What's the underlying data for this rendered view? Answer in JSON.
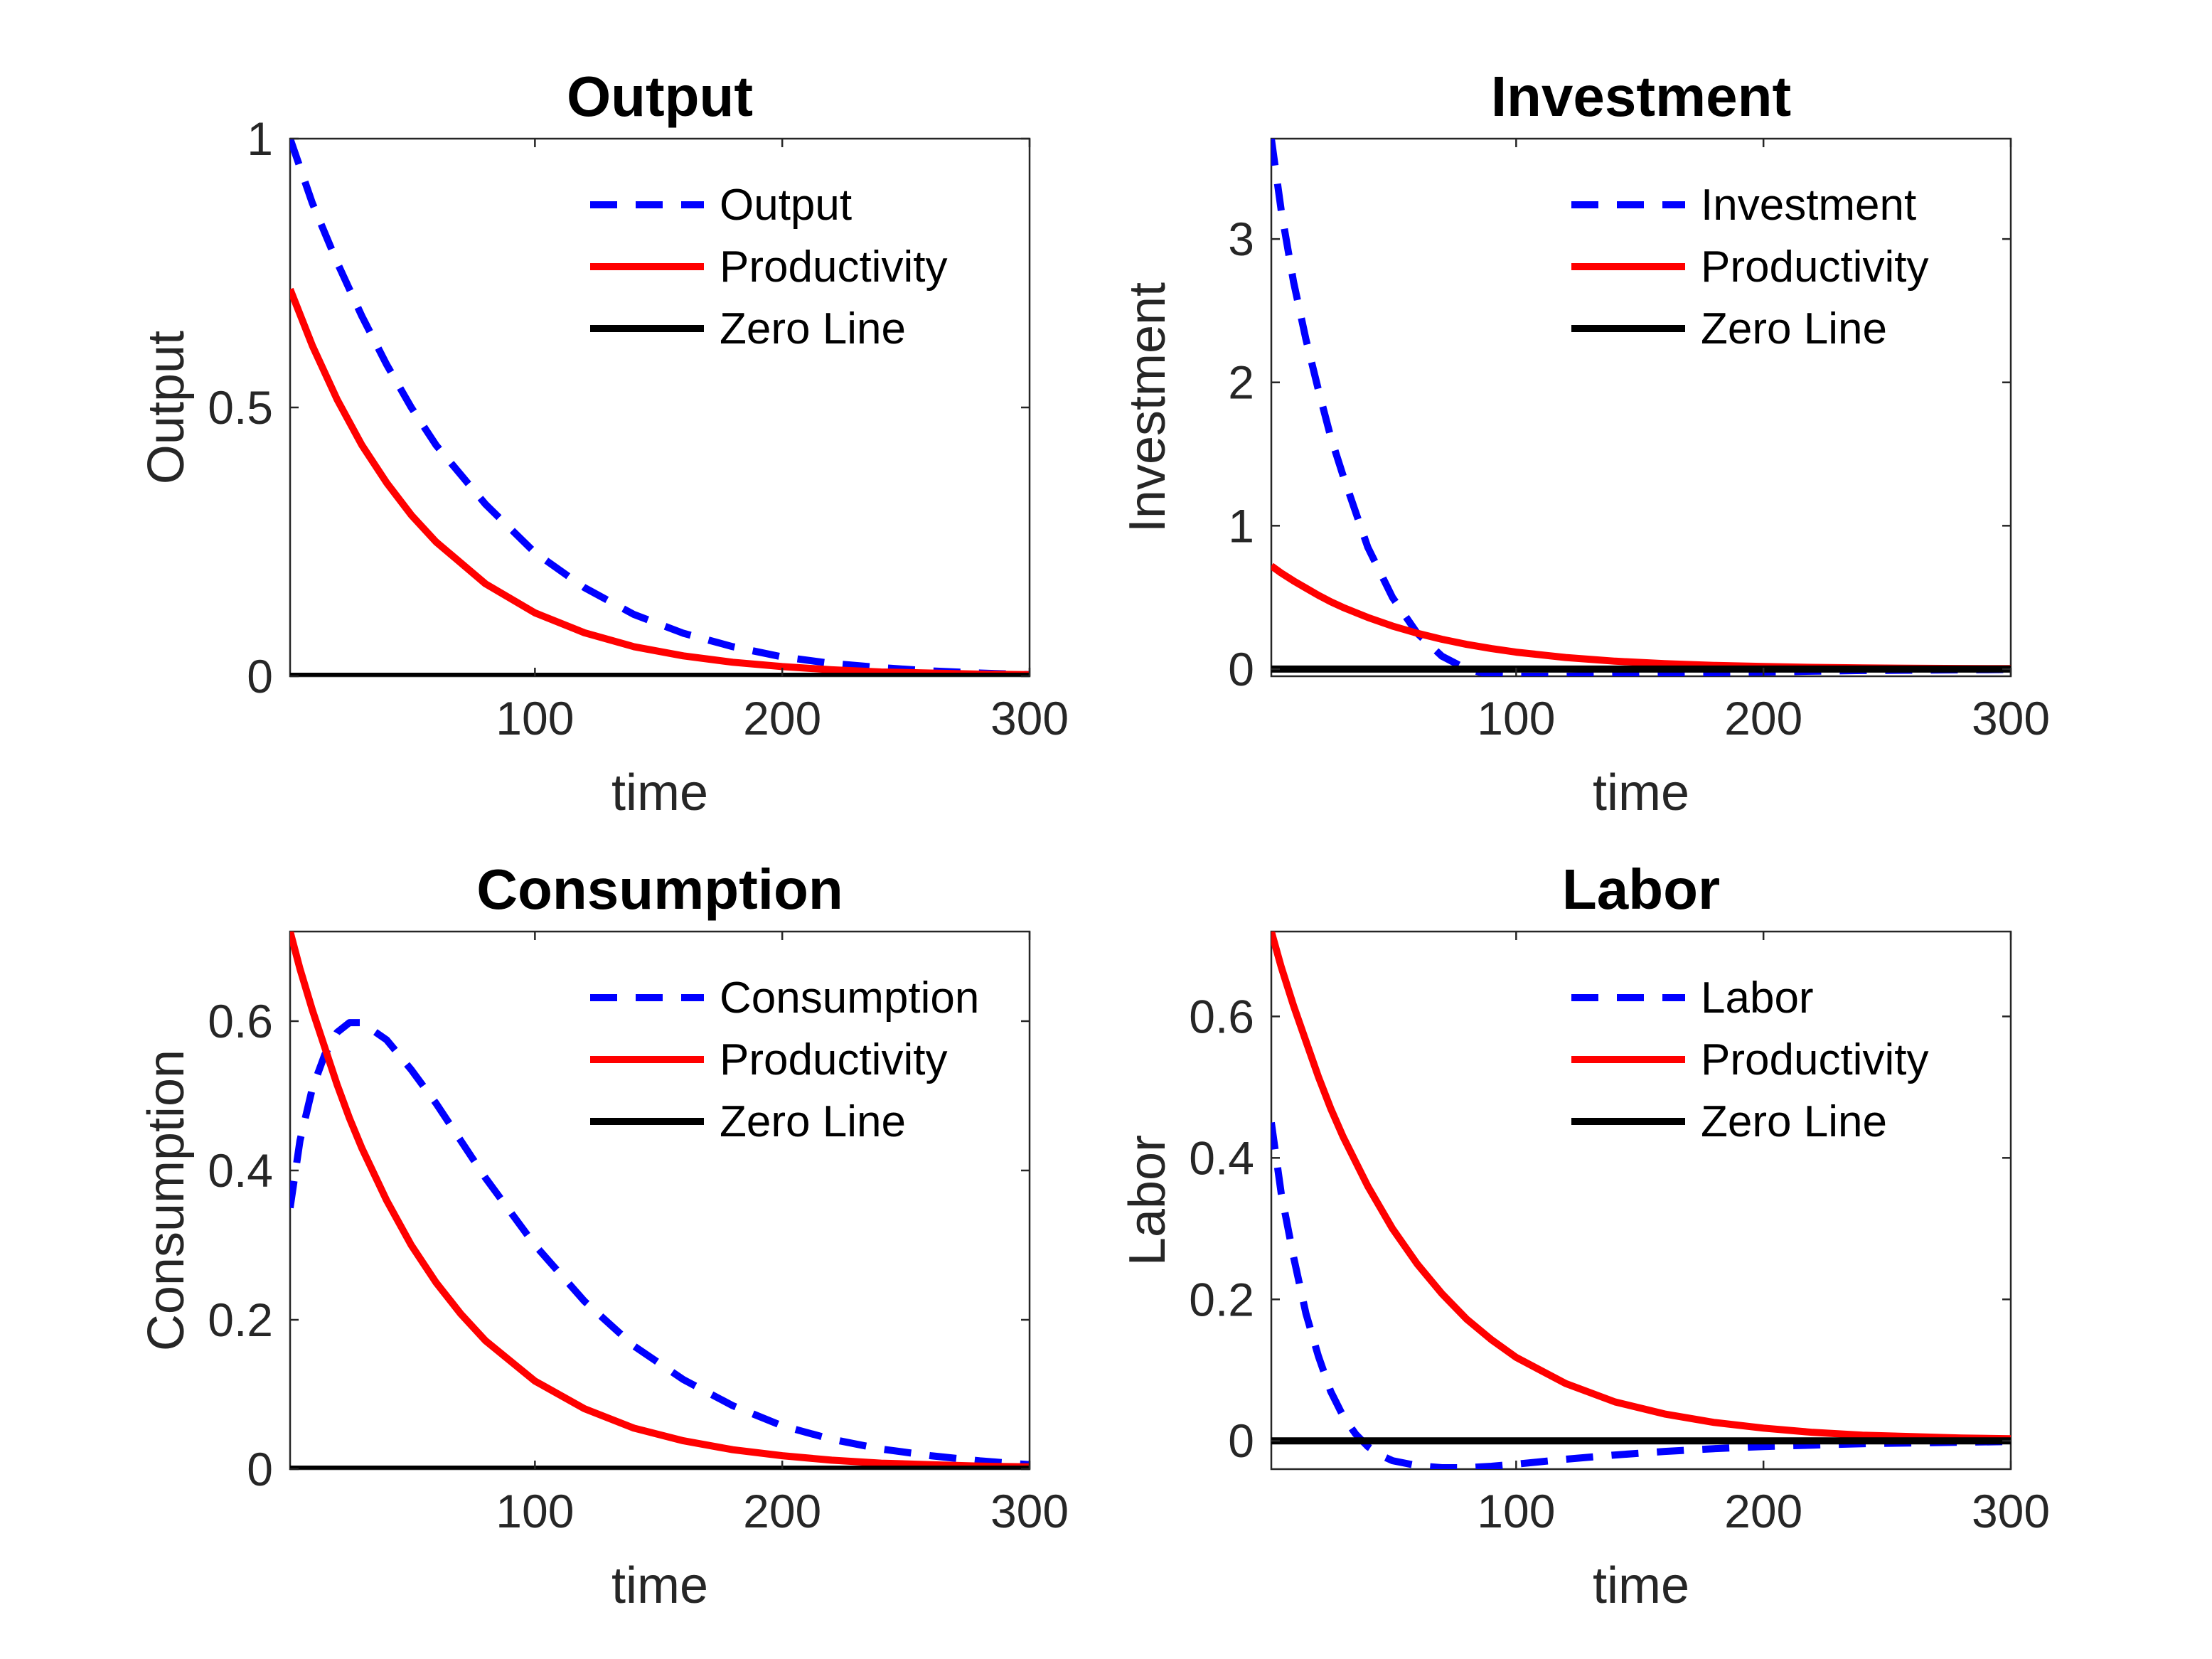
{
  "figure": {
    "background": "#ffffff"
  },
  "chart_data": [
    {
      "type": "line",
      "title": "Output",
      "xlabel": "time",
      "ylabel": "Output",
      "xlim": [
        1,
        300
      ],
      "ylim": [
        0,
        1
      ],
      "xticks": [
        100,
        200,
        300
      ],
      "yticks": [
        0,
        0.5,
        1
      ],
      "ytick_labels": [
        "0",
        "0.5",
        "1"
      ],
      "grid": false,
      "legend_position": "top-right",
      "x": [
        1,
        10,
        20,
        30,
        40,
        50,
        60,
        80,
        100,
        120,
        140,
        160,
        180,
        200,
        220,
        240,
        260,
        280,
        300
      ],
      "series": [
        {
          "name": "Output",
          "color": "#0000ff",
          "style": "dashed",
          "values": [
            1.0,
            0.88,
            0.77,
            0.67,
            0.58,
            0.5,
            0.43,
            0.32,
            0.23,
            0.165,
            0.115,
            0.08,
            0.055,
            0.036,
            0.024,
            0.016,
            0.01,
            0.006,
            0.003
          ]
        },
        {
          "name": "Productivity",
          "color": "#ff0000",
          "style": "solid",
          "values": [
            0.72,
            0.615,
            0.515,
            0.43,
            0.36,
            0.3,
            0.25,
            0.172,
            0.118,
            0.081,
            0.055,
            0.038,
            0.026,
            0.018,
            0.012,
            0.008,
            0.006,
            0.004,
            0.003
          ]
        },
        {
          "name": "Zero Line",
          "color": "#000000",
          "style": "solid",
          "values": [
            0,
            0,
            0,
            0,
            0,
            0,
            0,
            0,
            0,
            0,
            0,
            0,
            0,
            0,
            0,
            0,
            0,
            0,
            0
          ]
        }
      ]
    },
    {
      "type": "line",
      "title": "Investment",
      "xlabel": "time",
      "ylabel": "Investment",
      "xlim": [
        1,
        300
      ],
      "ylim": [
        -0.05,
        3.7
      ],
      "xticks": [
        100,
        200,
        300
      ],
      "yticks": [
        0,
        1,
        2,
        3
      ],
      "ytick_labels": [
        "0",
        "1",
        "2",
        "3"
      ],
      "grid": false,
      "legend_position": "top-right",
      "x": [
        1,
        5,
        10,
        15,
        20,
        25,
        30,
        40,
        50,
        60,
        70,
        80,
        90,
        100,
        120,
        140,
        160,
        180,
        200,
        220,
        240,
        260,
        280,
        300
      ],
      "series": [
        {
          "name": "Investment",
          "color": "#0000ff",
          "style": "dashed",
          "values": [
            3.7,
            3.2,
            2.7,
            2.3,
            1.95,
            1.62,
            1.35,
            0.85,
            0.5,
            0.25,
            0.09,
            0.0,
            -0.04,
            -0.05,
            -0.05,
            -0.04,
            -0.03,
            -0.025,
            -0.02,
            -0.015,
            -0.01,
            -0.008,
            -0.005,
            -0.003
          ]
        },
        {
          "name": "Productivity",
          "color": "#ff0000",
          "style": "solid",
          "values": [
            0.72,
            0.67,
            0.615,
            0.565,
            0.515,
            0.47,
            0.43,
            0.36,
            0.3,
            0.25,
            0.208,
            0.172,
            0.143,
            0.118,
            0.081,
            0.055,
            0.038,
            0.026,
            0.018,
            0.012,
            0.008,
            0.006,
            0.004,
            0.003
          ]
        },
        {
          "name": "Zero Line",
          "color": "#000000",
          "style": "solid",
          "values": [
            0,
            0,
            0,
            0,
            0,
            0,
            0,
            0,
            0,
            0,
            0,
            0,
            0,
            0,
            0,
            0,
            0,
            0,
            0,
            0,
            0,
            0,
            0,
            0
          ]
        }
      ]
    },
    {
      "type": "line",
      "title": "Consumption",
      "xlabel": "time",
      "ylabel": "Consumption",
      "xlim": [
        1,
        300
      ],
      "ylim": [
        0,
        0.72
      ],
      "xticks": [
        100,
        200,
        300
      ],
      "yticks": [
        0,
        0.2,
        0.4,
        0.6
      ],
      "ytick_labels": [
        "0",
        "0.2",
        "0.4",
        "0.6"
      ],
      "grid": false,
      "legend_position": "top-right",
      "x": [
        1,
        5,
        10,
        15,
        20,
        25,
        30,
        40,
        50,
        60,
        70,
        80,
        100,
        120,
        140,
        160,
        180,
        200,
        220,
        240,
        260,
        280,
        300
      ],
      "series": [
        {
          "name": "Consumption",
          "color": "#0000ff",
          "style": "dashed",
          "values": [
            0.35,
            0.44,
            0.51,
            0.555,
            0.585,
            0.598,
            0.598,
            0.575,
            0.535,
            0.49,
            0.44,
            0.39,
            0.3,
            0.225,
            0.165,
            0.12,
            0.085,
            0.058,
            0.04,
            0.027,
            0.018,
            0.011,
            0.006
          ]
        },
        {
          "name": "Productivity",
          "color": "#ff0000",
          "style": "solid",
          "values": [
            0.72,
            0.67,
            0.615,
            0.565,
            0.515,
            0.47,
            0.43,
            0.36,
            0.3,
            0.25,
            0.208,
            0.172,
            0.118,
            0.081,
            0.055,
            0.038,
            0.026,
            0.018,
            0.012,
            0.008,
            0.006,
            0.004,
            0.003
          ]
        },
        {
          "name": "Zero Line",
          "color": "#000000",
          "style": "solid",
          "values": [
            0,
            0,
            0,
            0,
            0,
            0,
            0,
            0,
            0,
            0,
            0,
            0,
            0,
            0,
            0,
            0,
            0,
            0,
            0,
            0,
            0,
            0,
            0
          ]
        }
      ]
    },
    {
      "type": "line",
      "title": "Labor",
      "xlabel": "time",
      "ylabel": "Labor",
      "xlim": [
        1,
        300
      ],
      "ylim": [
        -0.04,
        0.72
      ],
      "xticks": [
        100,
        200,
        300
      ],
      "yticks": [
        0,
        0.2,
        0.4,
        0.6
      ],
      "ytick_labels": [
        "0",
        "0.2",
        "0.4",
        "0.6"
      ],
      "grid": false,
      "legend_position": "top-right",
      "x": [
        1,
        5,
        10,
        15,
        20,
        25,
        30,
        35,
        40,
        45,
        50,
        60,
        70,
        80,
        90,
        100,
        120,
        140,
        160,
        180,
        200,
        220,
        240,
        260,
        280,
        300
      ],
      "series": [
        {
          "name": "Labor",
          "color": "#0000ff",
          "style": "dashed",
          "values": [
            0.45,
            0.35,
            0.26,
            0.18,
            0.12,
            0.07,
            0.035,
            0.01,
            -0.008,
            -0.02,
            -0.028,
            -0.035,
            -0.038,
            -0.038,
            -0.036,
            -0.033,
            -0.026,
            -0.02,
            -0.015,
            -0.011,
            -0.008,
            -0.006,
            -0.004,
            -0.003,
            -0.002,
            -0.001
          ]
        },
        {
          "name": "Productivity",
          "color": "#ff0000",
          "style": "solid",
          "values": [
            0.72,
            0.67,
            0.615,
            0.565,
            0.515,
            0.47,
            0.43,
            0.395,
            0.36,
            0.33,
            0.3,
            0.25,
            0.208,
            0.172,
            0.143,
            0.118,
            0.081,
            0.055,
            0.038,
            0.026,
            0.018,
            0.012,
            0.008,
            0.006,
            0.004,
            0.003
          ]
        },
        {
          "name": "Zero Line",
          "color": "#000000",
          "style": "solid",
          "values": [
            0,
            0,
            0,
            0,
            0,
            0,
            0,
            0,
            0,
            0,
            0,
            0,
            0,
            0,
            0,
            0,
            0,
            0,
            0,
            0,
            0,
            0,
            0,
            0,
            0,
            0
          ]
        }
      ]
    }
  ]
}
